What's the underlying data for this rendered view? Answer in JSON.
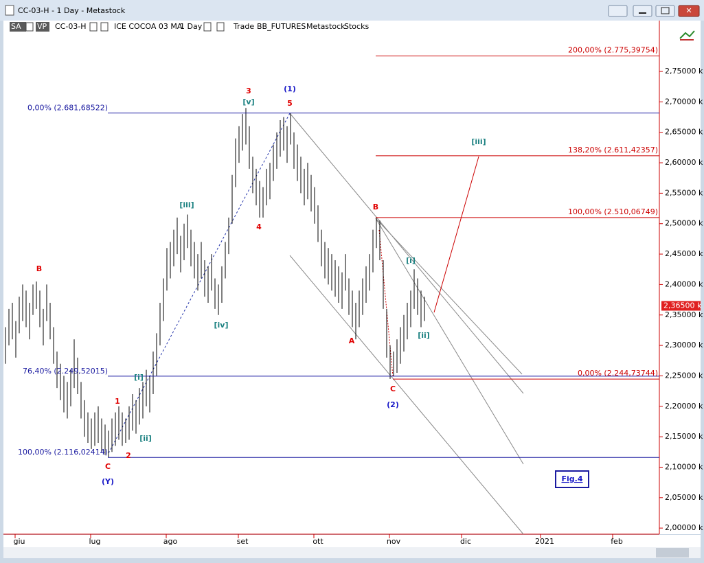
{
  "window": {
    "title": "CC-03-H - 1 Day - Metastock",
    "toolbar": [
      "SA",
      "VP",
      "CC-03-H",
      "ICE COCOA 03 MA",
      "1 Day",
      "Trade",
      "BB_FUTURES",
      "Metastock",
      "Stocks"
    ]
  },
  "chart_data": {
    "type": "ohlc",
    "color": "#000000",
    "high": [
      2330,
      2360,
      2370,
      2340,
      2380,
      2400,
      2390,
      2370,
      2400,
      2405,
      2390,
      2360,
      2400,
      2370,
      2330,
      2290,
      2270,
      2250,
      2240,
      2260,
      2310,
      2280,
      2240,
      2210,
      2190,
      2180,
      2190,
      2200,
      2180,
      2170,
      2160,
      2180,
      2190,
      2200,
      2190,
      2180,
      2200,
      2220,
      2210,
      2230,
      2240,
      2260,
      2250,
      2290,
      2320,
      2370,
      2410,
      2460,
      2470,
      2490,
      2510,
      2480,
      2500,
      2515,
      2490,
      2470,
      2450,
      2470,
      2440,
      2430,
      2450,
      2410,
      2400,
      2430,
      2470,
      2510,
      2580,
      2640,
      2660,
      2680,
      2690,
      2660,
      2610,
      2590,
      2570,
      2560,
      2590,
      2600,
      2630,
      2650,
      2670,
      2675,
      2660,
      2681,
      2650,
      2630,
      2610,
      2590,
      2600,
      2580,
      2560,
      2530,
      2490,
      2470,
      2460,
      2450,
      2440,
      2430,
      2420,
      2450,
      2410,
      2390,
      2370,
      2390,
      2410,
      2430,
      2450,
      2490,
      2510,
      2505,
      2440,
      2360,
      2300,
      2290,
      2310,
      2330,
      2350,
      2370,
      2390,
      2425,
      2410,
      2390,
      2380
    ],
    "low": [
      2270,
      2300,
      2310,
      2280,
      2320,
      2340,
      2330,
      2310,
      2350,
      2360,
      2330,
      2300,
      2340,
      2310,
      2270,
      2230,
      2210,
      2190,
      2180,
      2200,
      2230,
      2220,
      2180,
      2150,
      2140,
      2130,
      2135,
      2140,
      2125,
      2120,
      2116,
      2125,
      2135,
      2145,
      2135,
      2140,
      2145,
      2160,
      2155,
      2170,
      2180,
      2200,
      2190,
      2220,
      2250,
      2300,
      2340,
      2390,
      2410,
      2430,
      2450,
      2420,
      2440,
      2460,
      2430,
      2410,
      2390,
      2410,
      2380,
      2370,
      2390,
      2360,
      2350,
      2370,
      2410,
      2450,
      2500,
      2560,
      2600,
      2620,
      2630,
      2590,
      2550,
      2530,
      2510,
      2510,
      2530,
      2540,
      2570,
      2590,
      2610,
      2620,
      2600,
      2630,
      2590,
      2570,
      2550,
      2530,
      2540,
      2520,
      2500,
      2470,
      2430,
      2410,
      2400,
      2390,
      2380,
      2370,
      2360,
      2390,
      2350,
      2330,
      2310,
      2330,
      2350,
      2370,
      2390,
      2420,
      2460,
      2440,
      2360,
      2280,
      2245,
      2250,
      2255,
      2270,
      2290,
      2310,
      2330,
      2360,
      2350,
      2330,
      2340
    ],
    "xlim": [
      -0.6,
      190.4
    ],
    "xticks": [
      {
        "value": 4,
        "label": "giu"
      },
      {
        "value": 26,
        "label": "lug"
      },
      {
        "value": 48,
        "label": "ago"
      },
      {
        "value": 69,
        "label": "set"
      },
      {
        "value": 91,
        "label": "ott"
      },
      {
        "value": 113,
        "label": "nov"
      },
      {
        "value": 134,
        "label": "dic"
      },
      {
        "value": 157,
        "label": "2021"
      },
      {
        "value": 178,
        "label": "feb"
      }
    ],
    "ylim": [
      1990,
      2833.5
    ],
    "yticks": [
      {
        "value": 2000,
        "label": "2,00000 k"
      },
      {
        "value": 2050,
        "label": "2,05000 k"
      },
      {
        "value": 2100,
        "label": "2,10000 k"
      },
      {
        "value": 2150,
        "label": "2,15000 k"
      },
      {
        "value": 2200,
        "label": "2,20000 k"
      },
      {
        "value": 2250,
        "label": "2,25000 k"
      },
      {
        "value": 2300,
        "label": "2,30000 k"
      },
      {
        "value": 2350,
        "label": "2,35000 k"
      },
      {
        "value": 2400,
        "label": "2,40000 k"
      },
      {
        "value": 2450,
        "label": "2,45000 k"
      },
      {
        "value": 2500,
        "label": "2,50000 k"
      },
      {
        "value": 2550,
        "label": "2,55000 k"
      },
      {
        "value": 2600,
        "label": "2,60000 k"
      },
      {
        "value": 2650,
        "label": "2,65000 k"
      },
      {
        "value": 2700,
        "label": "2,70000 k"
      },
      {
        "value": 2750,
        "label": "2,75000 k"
      }
    ],
    "levels": [
      {
        "value": 2681.68522,
        "label": "0,00% (2.681,68522)",
        "color": "#1a1aa0"
      },
      {
        "value": 2249.52015,
        "label": "76,40% (2.249,52015)",
        "color": "#1a1aa0"
      },
      {
        "value": 2116.02414,
        "label": "100,00% (2.116,02414)",
        "color": "#1a1aa0"
      },
      {
        "value": 2775.39754,
        "label": "200,00% (2.775,39754)",
        "color": "#cc0000"
      },
      {
        "value": 2611.42357,
        "label": "138,20% (2.611,42357)",
        "color": "#cc0000"
      },
      {
        "value": 2510.06749,
        "label": "100,00% (2.510,06749)",
        "color": "#cc0000"
      },
      {
        "value": 2244.73744,
        "label": "0,00% (2.244,73744)",
        "color": "#cc0000"
      }
    ],
    "last": {
      "value": 2365,
      "label": "2,36500 k",
      "color": "#e02020"
    },
    "annotations": [
      {
        "text": "3",
        "color": "#e00000"
      },
      {
        "text": "(1)",
        "color": "#1a1ac8"
      },
      {
        "text": "[v]",
        "color": "#1a8080"
      },
      {
        "text": "5",
        "color": "#e00000"
      },
      {
        "text": "[iii]",
        "color": "#1a8080"
      },
      {
        "text": "4",
        "color": "#e00000"
      },
      {
        "text": "[iv]",
        "color": "#1a8080"
      },
      {
        "text": "B",
        "color": "#e00000"
      },
      {
        "text": "1",
        "color": "#e00000"
      },
      {
        "text": "[i]",
        "color": "#1a8080"
      },
      {
        "text": "[ii]",
        "color": "#1a8080"
      },
      {
        "text": "2",
        "color": "#e00000"
      },
      {
        "text": "C",
        "color": "#e00000"
      },
      {
        "text": "(Y)",
        "color": "#1a1ac8"
      },
      {
        "text": "B",
        "color": "#e00000"
      },
      {
        "text": "A",
        "color": "#e00000"
      },
      {
        "text": "[i]",
        "color": "#1a8080"
      },
      {
        "text": "[ii]",
        "color": "#1a8080"
      },
      {
        "text": "C",
        "color": "#e00000"
      },
      {
        "text": "(2)",
        "color": "#1a1ac8"
      },
      {
        "text": "[iii]",
        "color": "#1a8080"
      }
    ],
    "figure_label": "Fig.4"
  }
}
